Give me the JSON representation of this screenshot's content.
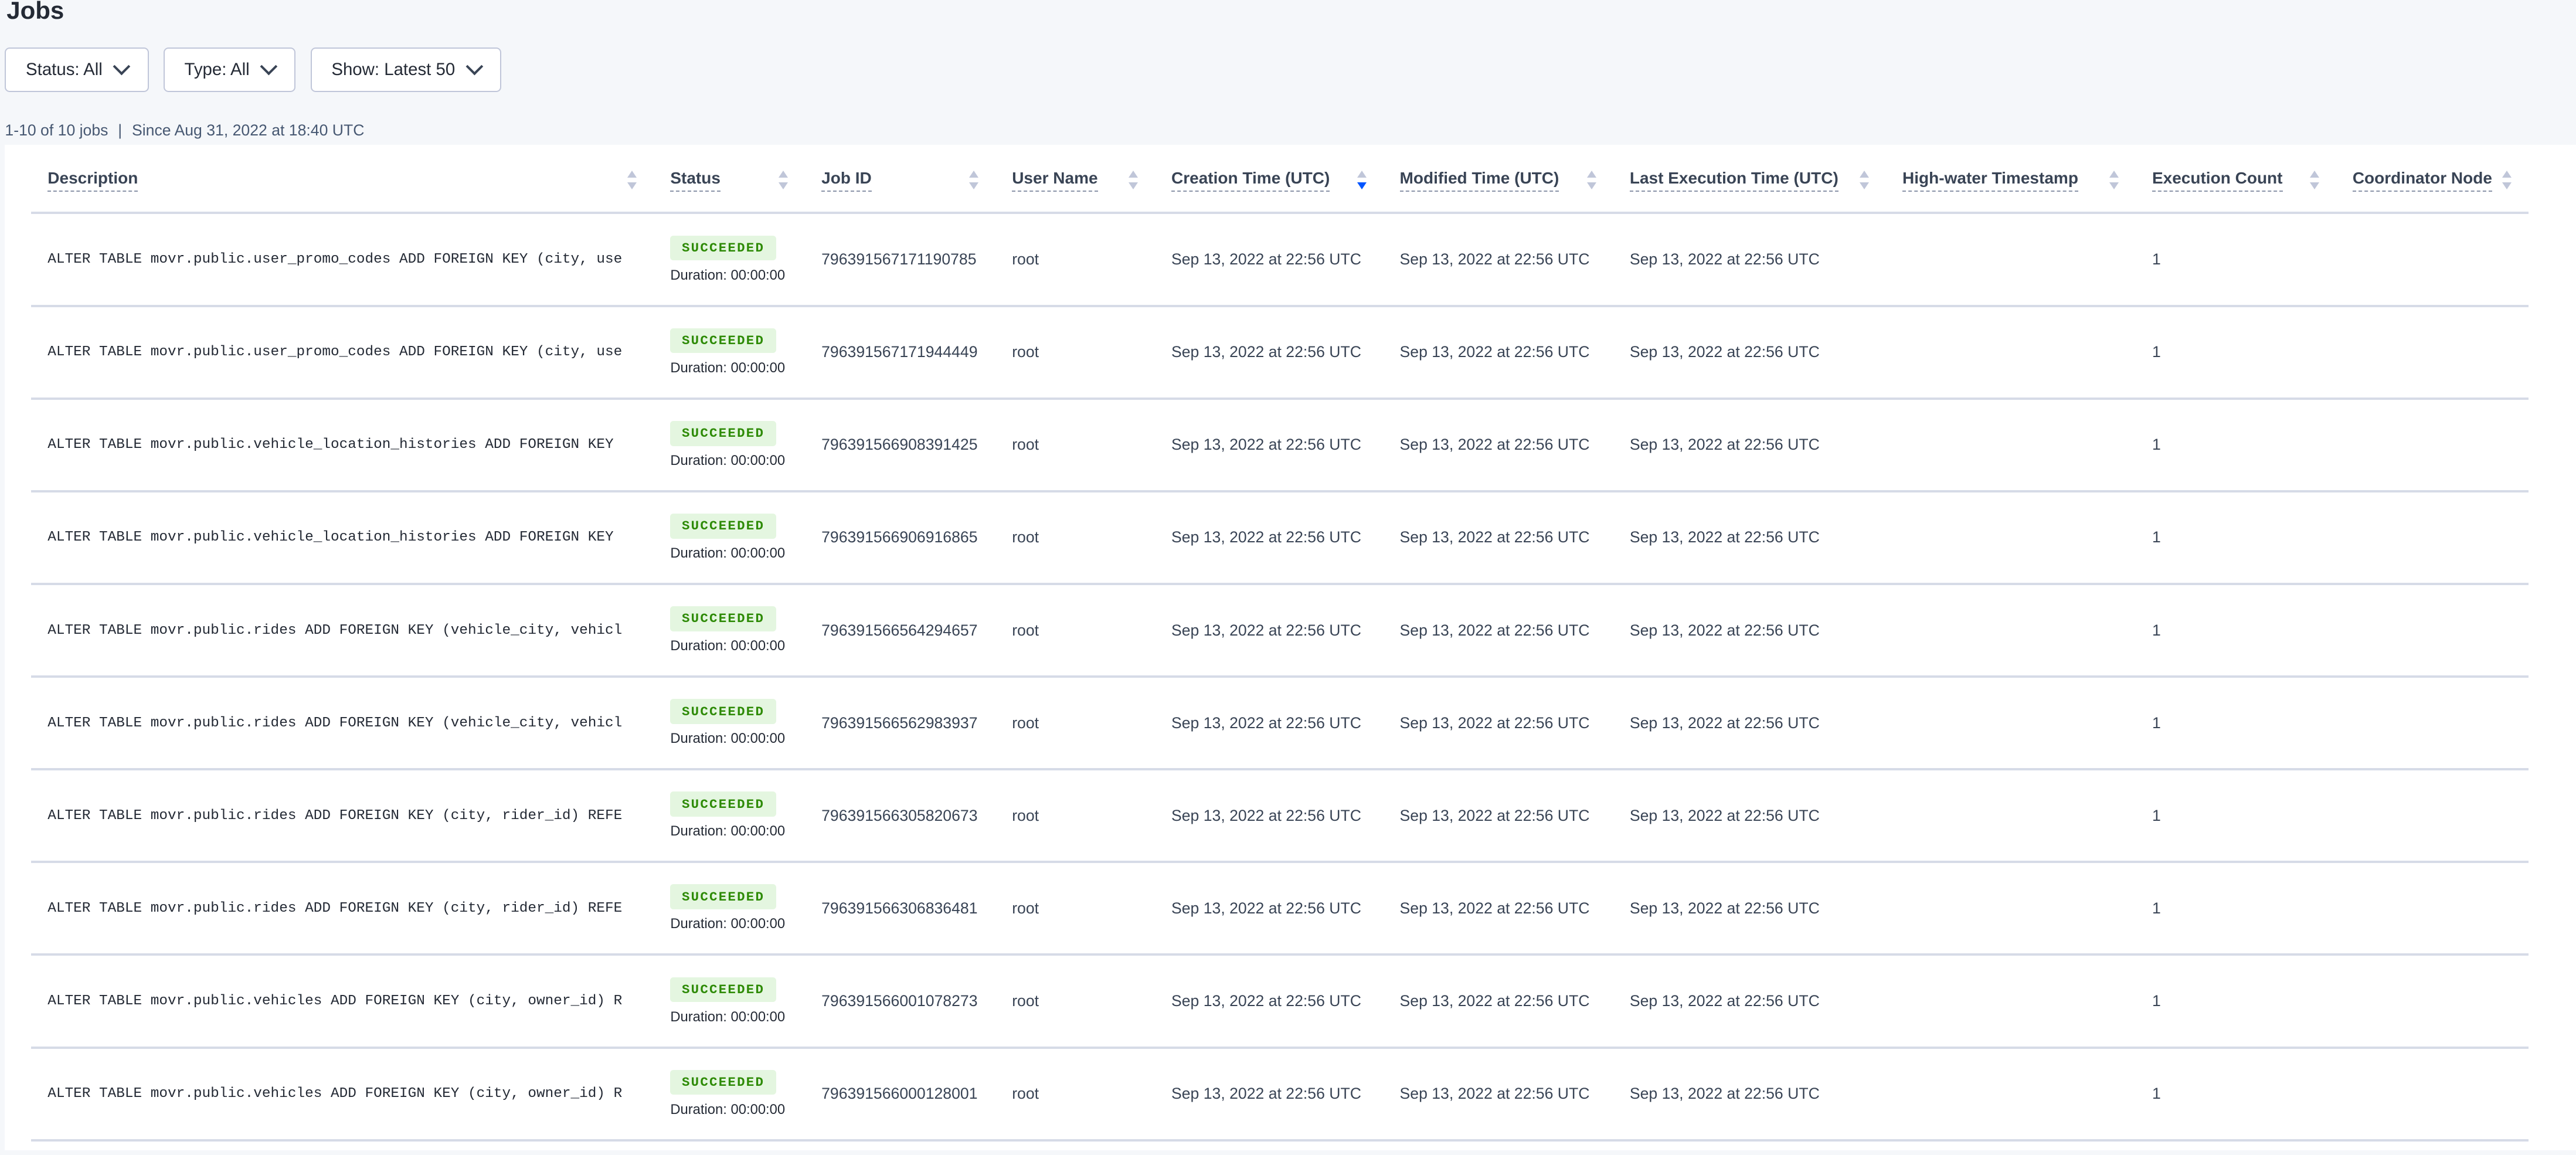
{
  "page": {
    "title": "Jobs"
  },
  "filters": [
    {
      "label": "Status: All"
    },
    {
      "label": "Type: All"
    },
    {
      "label": "Show: Latest 50"
    }
  ],
  "summary": {
    "count": "1-10 of 10 jobs",
    "separator": "|",
    "since": "Since Aug 31, 2022 at 18:40 UTC"
  },
  "table": {
    "sorted_column": "Creation Time (UTC)",
    "sort_direction": "descending",
    "columns": [
      "Description",
      "Status",
      "Job ID",
      "User Name",
      "Creation Time (UTC)",
      "Modified Time (UTC)",
      "Last Execution Time (UTC)",
      "High-water Timestamp",
      "Execution Count",
      "Coordinator Node"
    ],
    "rows": [
      {
        "description": "ALTER TABLE movr.public.user_promo_codes ADD FOREIGN KEY (city, use",
        "status": "SUCCEEDED",
        "duration": "Duration: 00:00:00",
        "job_id": "796391567171190785",
        "user": "root",
        "created": "Sep 13, 2022 at 22:56 UTC",
        "modified": "Sep 13, 2022 at 22:56 UTC",
        "last_exec": "Sep 13, 2022 at 22:56 UTC",
        "high_water": "",
        "exec_count": "1",
        "coordinator": ""
      },
      {
        "description": "ALTER TABLE movr.public.user_promo_codes ADD FOREIGN KEY (city, use",
        "status": "SUCCEEDED",
        "duration": "Duration: 00:00:00",
        "job_id": "796391567171944449",
        "user": "root",
        "created": "Sep 13, 2022 at 22:56 UTC",
        "modified": "Sep 13, 2022 at 22:56 UTC",
        "last_exec": "Sep 13, 2022 at 22:56 UTC",
        "high_water": "",
        "exec_count": "1",
        "coordinator": ""
      },
      {
        "description": "ALTER TABLE movr.public.vehicle_location_histories ADD FOREIGN KEY",
        "status": "SUCCEEDED",
        "duration": "Duration: 00:00:00",
        "job_id": "796391566908391425",
        "user": "root",
        "created": "Sep 13, 2022 at 22:56 UTC",
        "modified": "Sep 13, 2022 at 22:56 UTC",
        "last_exec": "Sep 13, 2022 at 22:56 UTC",
        "high_water": "",
        "exec_count": "1",
        "coordinator": ""
      },
      {
        "description": "ALTER TABLE movr.public.vehicle_location_histories ADD FOREIGN KEY",
        "status": "SUCCEEDED",
        "duration": "Duration: 00:00:00",
        "job_id": "796391566906916865",
        "user": "root",
        "created": "Sep 13, 2022 at 22:56 UTC",
        "modified": "Sep 13, 2022 at 22:56 UTC",
        "last_exec": "Sep 13, 2022 at 22:56 UTC",
        "high_water": "",
        "exec_count": "1",
        "coordinator": ""
      },
      {
        "description": "ALTER TABLE movr.public.rides ADD FOREIGN KEY (vehicle_city, vehicl",
        "status": "SUCCEEDED",
        "duration": "Duration: 00:00:00",
        "job_id": "796391566564294657",
        "user": "root",
        "created": "Sep 13, 2022 at 22:56 UTC",
        "modified": "Sep 13, 2022 at 22:56 UTC",
        "last_exec": "Sep 13, 2022 at 22:56 UTC",
        "high_water": "",
        "exec_count": "1",
        "coordinator": ""
      },
      {
        "description": "ALTER TABLE movr.public.rides ADD FOREIGN KEY (vehicle_city, vehicl",
        "status": "SUCCEEDED",
        "duration": "Duration: 00:00:00",
        "job_id": "796391566562983937",
        "user": "root",
        "created": "Sep 13, 2022 at 22:56 UTC",
        "modified": "Sep 13, 2022 at 22:56 UTC",
        "last_exec": "Sep 13, 2022 at 22:56 UTC",
        "high_water": "",
        "exec_count": "1",
        "coordinator": ""
      },
      {
        "description": "ALTER TABLE movr.public.rides ADD FOREIGN KEY (city, rider_id) REFE",
        "status": "SUCCEEDED",
        "duration": "Duration: 00:00:00",
        "job_id": "796391566305820673",
        "user": "root",
        "created": "Sep 13, 2022 at 22:56 UTC",
        "modified": "Sep 13, 2022 at 22:56 UTC",
        "last_exec": "Sep 13, 2022 at 22:56 UTC",
        "high_water": "",
        "exec_count": "1",
        "coordinator": ""
      },
      {
        "description": "ALTER TABLE movr.public.rides ADD FOREIGN KEY (city, rider_id) REFE",
        "status": "SUCCEEDED",
        "duration": "Duration: 00:00:00",
        "job_id": "796391566306836481",
        "user": "root",
        "created": "Sep 13, 2022 at 22:56 UTC",
        "modified": "Sep 13, 2022 at 22:56 UTC",
        "last_exec": "Sep 13, 2022 at 22:56 UTC",
        "high_water": "",
        "exec_count": "1",
        "coordinator": ""
      },
      {
        "description": "ALTER TABLE movr.public.vehicles ADD FOREIGN KEY (city, owner_id) R",
        "status": "SUCCEEDED",
        "duration": "Duration: 00:00:00",
        "job_id": "796391566001078273",
        "user": "root",
        "created": "Sep 13, 2022 at 22:56 UTC",
        "modified": "Sep 13, 2022 at 22:56 UTC",
        "last_exec": "Sep 13, 2022 at 22:56 UTC",
        "high_water": "",
        "exec_count": "1",
        "coordinator": ""
      },
      {
        "description": "ALTER TABLE movr.public.vehicles ADD FOREIGN KEY (city, owner_id) R",
        "status": "SUCCEEDED",
        "duration": "Duration: 00:00:00",
        "job_id": "796391566000128001",
        "user": "root",
        "created": "Sep 13, 2022 at 22:56 UTC",
        "modified": "Sep 13, 2022 at 22:56 UTC",
        "last_exec": "Sep 13, 2022 at 22:56 UTC",
        "high_water": "",
        "exec_count": "1",
        "coordinator": ""
      }
    ]
  },
  "colors": {
    "accent": "#0055ff",
    "success_bg": "#e4f6e0",
    "success_text": "#2d8a05",
    "border": "#d6dbe7"
  }
}
